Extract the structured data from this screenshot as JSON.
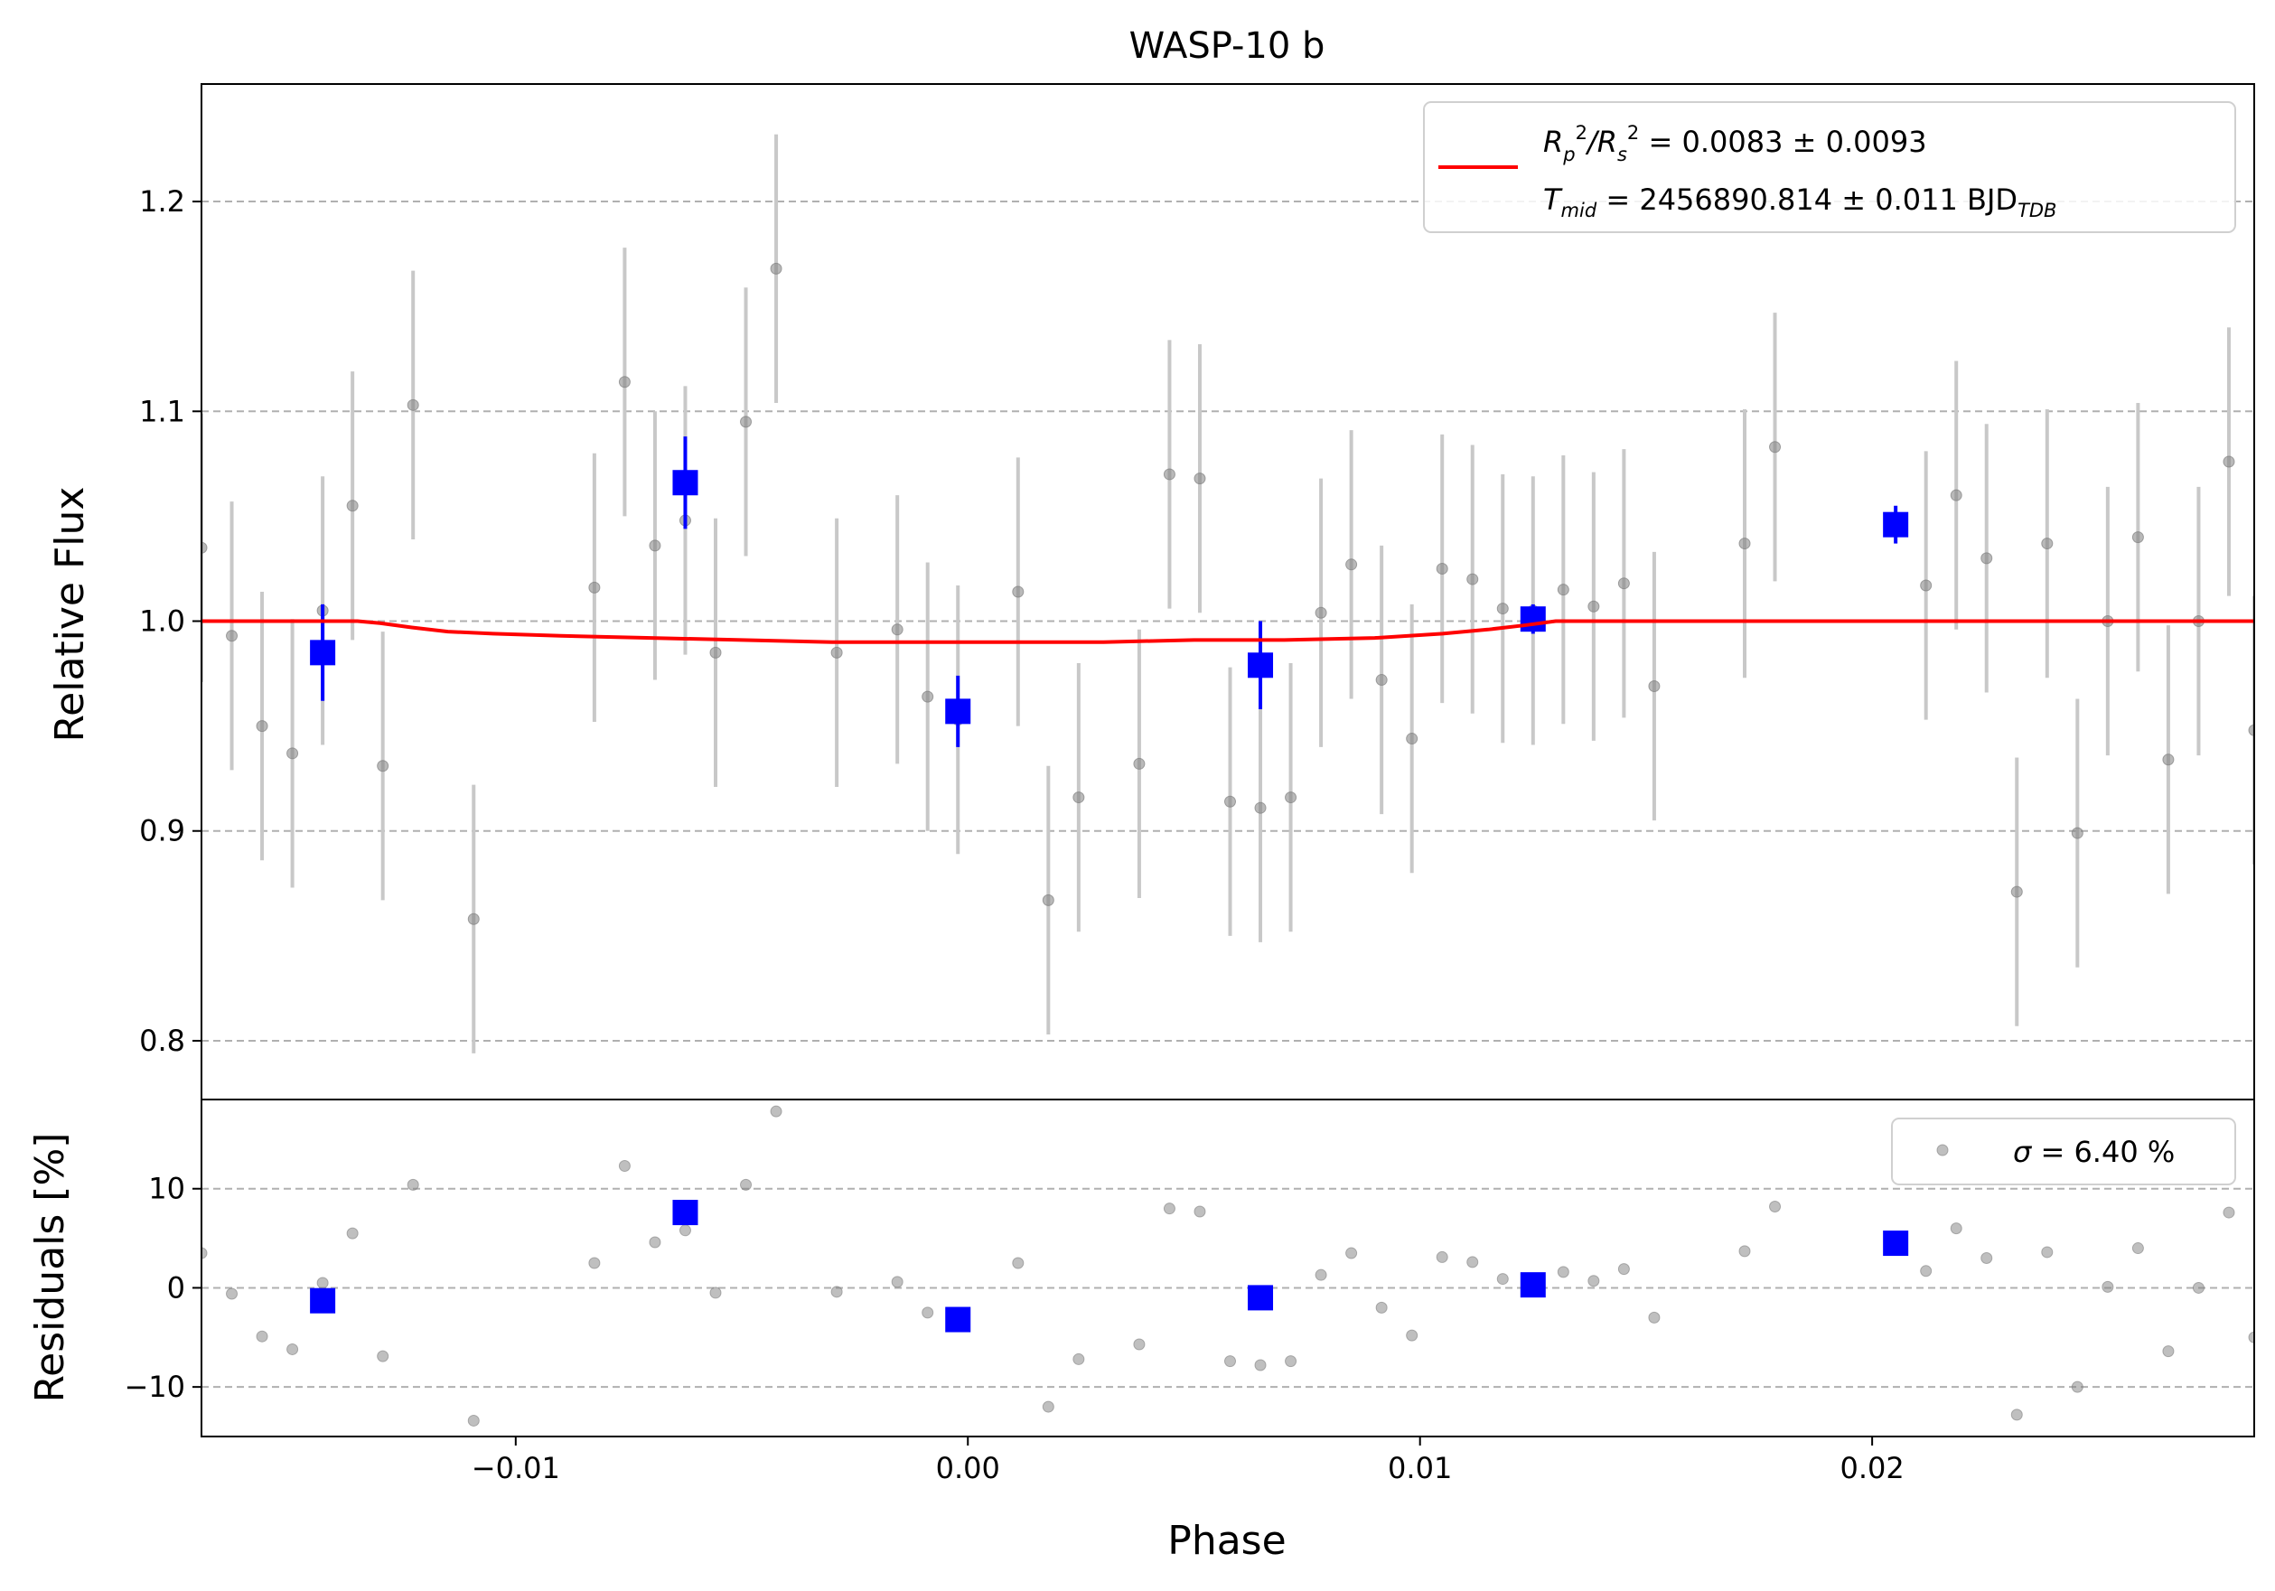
{
  "chart_data": {
    "title": "WASP-10 b",
    "xlabel": "Phase",
    "x_ticks": [
      -0.01,
      0.0,
      0.01,
      0.02
    ],
    "x_tick_labels": [
      "−0.01",
      "0.00",
      "0.01",
      "0.02"
    ],
    "xlim": [
      -0.01695,
      0.02845
    ],
    "top_panel": {
      "type": "scatter",
      "ylabel": "Relative Flux",
      "ylim": [
        0.772,
        1.256
      ],
      "y_ticks": [
        0.8,
        0.9,
        1.0,
        1.1,
        1.2
      ],
      "y_tick_labels": [
        "0.8",
        "0.9",
        "1.0",
        "1.1",
        "1.2"
      ],
      "grid": "horizontal dashed",
      "legend": {
        "placement": "top-right",
        "line1": {
          "math": "R",
          "sub_p": "p",
          "sup1": "2",
          "slash": "/R",
          "sub_s": "s",
          "sup2": "2",
          "text": " = 0.0083 ± 0.0093"
        },
        "line2": {
          "math": "T",
          "sub": "mid",
          "text": " = 2456890.814 ± 0.011 BJD",
          "suffix_sub": "TDB"
        }
      },
      "raw_points": [
        {
          "x": -0.01695,
          "y": 1.035,
          "err": 0.064
        },
        {
          "x": -0.01628,
          "y": 0.993,
          "err": 0.064
        },
        {
          "x": -0.01561,
          "y": 0.95,
          "err": 0.064
        },
        {
          "x": -0.01494,
          "y": 0.937,
          "err": 0.064
        },
        {
          "x": -0.01427,
          "y": 1.005,
          "err": 0.064
        },
        {
          "x": -0.01361,
          "y": 1.055,
          "err": 0.064
        },
        {
          "x": -0.01294,
          "y": 0.931,
          "err": 0.064
        },
        {
          "x": -0.01227,
          "y": 1.103,
          "err": 0.064
        },
        {
          "x": -0.01093,
          "y": 0.858,
          "err": 0.064
        },
        {
          "x": -0.00826,
          "y": 1.016,
          "err": 0.064
        },
        {
          "x": -0.00759,
          "y": 1.114,
          "err": 0.064
        },
        {
          "x": -0.00692,
          "y": 1.036,
          "err": 0.064
        },
        {
          "x": -0.00625,
          "y": 1.048,
          "err": 0.064
        },
        {
          "x": -0.00558,
          "y": 0.985,
          "err": 0.064
        },
        {
          "x": -0.00491,
          "y": 1.095,
          "err": 0.064
        },
        {
          "x": -0.00424,
          "y": 1.168,
          "err": 0.064
        },
        {
          "x": -0.0029,
          "y": 0.985,
          "err": 0.064
        },
        {
          "x": -0.00156,
          "y": 0.996,
          "err": 0.064
        },
        {
          "x": -0.00089,
          "y": 0.964,
          "err": 0.064
        },
        {
          "x": -0.00022,
          "y": 0.953,
          "err": 0.064
        },
        {
          "x": 0.00111,
          "y": 1.014,
          "err": 0.064
        },
        {
          "x": 0.00178,
          "y": 0.867,
          "err": 0.064
        },
        {
          "x": 0.00245,
          "y": 0.916,
          "err": 0.064
        },
        {
          "x": 0.00379,
          "y": 0.932,
          "err": 0.064
        },
        {
          "x": 0.00446,
          "y": 1.07,
          "err": 0.064
        },
        {
          "x": 0.00513,
          "y": 1.068,
          "err": 0.064
        },
        {
          "x": 0.0058,
          "y": 0.914,
          "err": 0.064
        },
        {
          "x": 0.00647,
          "y": 0.911,
          "err": 0.064
        },
        {
          "x": 0.00714,
          "y": 0.916,
          "err": 0.064
        },
        {
          "x": 0.00781,
          "y": 1.004,
          "err": 0.064
        },
        {
          "x": 0.00848,
          "y": 1.027,
          "err": 0.064
        },
        {
          "x": 0.00915,
          "y": 0.972,
          "err": 0.064
        },
        {
          "x": 0.00982,
          "y": 0.944,
          "err": 0.064
        },
        {
          "x": 0.01049,
          "y": 1.025,
          "err": 0.064
        },
        {
          "x": 0.01116,
          "y": 1.02,
          "err": 0.064
        },
        {
          "x": 0.01183,
          "y": 1.006,
          "err": 0.064
        },
        {
          "x": 0.0125,
          "y": 1.005,
          "err": 0.064
        },
        {
          "x": 0.01317,
          "y": 1.015,
          "err": 0.064
        },
        {
          "x": 0.01384,
          "y": 1.007,
          "err": 0.064
        },
        {
          "x": 0.01451,
          "y": 1.018,
          "err": 0.064
        },
        {
          "x": 0.01518,
          "y": 0.969,
          "err": 0.064
        },
        {
          "x": 0.01718,
          "y": 1.037,
          "err": 0.064
        },
        {
          "x": 0.01785,
          "y": 1.083,
          "err": 0.064
        },
        {
          "x": 0.02119,
          "y": 1.017,
          "err": 0.064
        },
        {
          "x": 0.02186,
          "y": 1.06,
          "err": 0.064
        },
        {
          "x": 0.02253,
          "y": 1.03,
          "err": 0.064
        },
        {
          "x": 0.0232,
          "y": 0.871,
          "err": 0.064
        },
        {
          "x": 0.02387,
          "y": 1.037,
          "err": 0.064
        },
        {
          "x": 0.02454,
          "y": 0.899,
          "err": 0.064
        },
        {
          "x": 0.02521,
          "y": 1.0,
          "err": 0.064
        },
        {
          "x": 0.02588,
          "y": 1.04,
          "err": 0.064
        },
        {
          "x": 0.02655,
          "y": 0.934,
          "err": 0.064
        },
        {
          "x": 0.02722,
          "y": 1.0,
          "err": 0.064
        },
        {
          "x": 0.02789,
          "y": 1.076,
          "err": 0.064
        },
        {
          "x": 0.02845,
          "y": 0.948,
          "err": 0.064
        }
      ],
      "binned_points": [
        {
          "x": -0.01427,
          "y": 0.985,
          "err": 0.023
        },
        {
          "x": -0.00625,
          "y": 1.066,
          "err": 0.022
        },
        {
          "x": -0.00022,
          "y": 0.957,
          "err": 0.017
        },
        {
          "x": 0.00647,
          "y": 0.979,
          "err": 0.021
        },
        {
          "x": 0.0125,
          "y": 1.001,
          "err": 0.007
        },
        {
          "x": 0.02052,
          "y": 1.046,
          "err": 0.009
        }
      ],
      "model": {
        "x": [
          -0.01695,
          -0.0135,
          -0.013,
          -0.0123,
          -0.0115,
          -0.0105,
          -0.009,
          -0.007,
          -0.005,
          -0.003,
          -0.001,
          0.001,
          0.003,
          0.005,
          0.007,
          0.009,
          0.0105,
          0.0115,
          0.0123,
          0.013,
          0.0135,
          0.02845
        ],
        "y": [
          1.0,
          1.0,
          0.999,
          0.997,
          0.995,
          0.994,
          0.993,
          0.992,
          0.991,
          0.99,
          0.99,
          0.99,
          0.99,
          0.991,
          0.991,
          0.992,
          0.994,
          0.996,
          0.998,
          1.0,
          1.0,
          1.0
        ]
      },
      "colors": {
        "raw": "#808080",
        "raw_err": "#c8c8c8",
        "binned": "#0000ff",
        "model": "#ff0000"
      }
    },
    "bottom_panel": {
      "type": "scatter",
      "ylabel": "Residuals [%]",
      "ylim": [
        -15,
        19
      ],
      "y_ticks": [
        -10,
        0,
        10
      ],
      "y_tick_labels": [
        "−10",
        "0",
        "10"
      ],
      "grid": "horizontal dashed",
      "legend": {
        "placement": "top-right",
        "symbol": "σ",
        "text": " = 6.40 %"
      },
      "raw_points": [
        {
          "x": -0.01695,
          "y": 3.5
        },
        {
          "x": -0.01628,
          "y": -0.6
        },
        {
          "x": -0.01561,
          "y": -4.9
        },
        {
          "x": -0.01494,
          "y": -6.2
        },
        {
          "x": -0.01427,
          "y": 0.5
        },
        {
          "x": -0.01361,
          "y": 5.5
        },
        {
          "x": -0.01294,
          "y": -6.9
        },
        {
          "x": -0.01227,
          "y": 10.4
        },
        {
          "x": -0.01093,
          "y": -13.4
        },
        {
          "x": -0.00826,
          "y": 2.5
        },
        {
          "x": -0.00759,
          "y": 12.3
        },
        {
          "x": -0.00692,
          "y": 4.6
        },
        {
          "x": -0.00625,
          "y": 5.8
        },
        {
          "x": -0.00558,
          "y": -0.5
        },
        {
          "x": -0.00491,
          "y": 10.4
        },
        {
          "x": -0.00424,
          "y": 17.8
        },
        {
          "x": -0.0029,
          "y": -0.4
        },
        {
          "x": -0.00156,
          "y": 0.6
        },
        {
          "x": -0.00089,
          "y": -2.5
        },
        {
          "x": -0.00022,
          "y": -3.3
        },
        {
          "x": 0.00111,
          "y": 2.5
        },
        {
          "x": 0.00178,
          "y": -12.0
        },
        {
          "x": 0.00245,
          "y": -7.2
        },
        {
          "x": 0.00379,
          "y": -5.7
        },
        {
          "x": 0.00446,
          "y": 8.0
        },
        {
          "x": 0.00513,
          "y": 7.7
        },
        {
          "x": 0.0058,
          "y": -7.4
        },
        {
          "x": 0.00647,
          "y": -7.8
        },
        {
          "x": 0.00714,
          "y": -7.4
        },
        {
          "x": 0.00781,
          "y": 1.3
        },
        {
          "x": 0.00848,
          "y": 3.5
        },
        {
          "x": 0.00915,
          "y": -2.0
        },
        {
          "x": 0.00982,
          "y": -4.8
        },
        {
          "x": 0.01049,
          "y": 3.1
        },
        {
          "x": 0.01116,
          "y": 2.6
        },
        {
          "x": 0.01183,
          "y": 0.9
        },
        {
          "x": 0.0125,
          "y": 0.2
        },
        {
          "x": 0.01317,
          "y": 1.6
        },
        {
          "x": 0.01384,
          "y": 0.7
        },
        {
          "x": 0.01451,
          "y": 1.9
        },
        {
          "x": 0.01518,
          "y": -3.0
        },
        {
          "x": 0.01718,
          "y": 3.7
        },
        {
          "x": 0.01785,
          "y": 8.2
        },
        {
          "x": 0.02119,
          "y": 1.7
        },
        {
          "x": 0.02186,
          "y": 6.0
        },
        {
          "x": 0.02253,
          "y": 3.0
        },
        {
          "x": 0.0232,
          "y": -12.8
        },
        {
          "x": 0.02387,
          "y": 3.6
        },
        {
          "x": 0.02454,
          "y": -10.0
        },
        {
          "x": 0.02521,
          "y": 0.1
        },
        {
          "x": 0.02588,
          "y": 4.0
        },
        {
          "x": 0.02655,
          "y": -6.4
        },
        {
          "x": 0.02722,
          "y": 0.0
        },
        {
          "x": 0.02789,
          "y": 7.6
        },
        {
          "x": 0.02845,
          "y": -5.0
        }
      ],
      "binned_points": [
        {
          "x": -0.01427,
          "y": -1.3
        },
        {
          "x": -0.00625,
          "y": 7.6
        },
        {
          "x": -0.00022,
          "y": -3.2
        },
        {
          "x": 0.00647,
          "y": -1.0
        },
        {
          "x": 0.0125,
          "y": 0.3
        },
        {
          "x": 0.02052,
          "y": 4.5
        }
      ],
      "colors": {
        "raw": "#808080",
        "binned": "#0000ff"
      }
    }
  }
}
